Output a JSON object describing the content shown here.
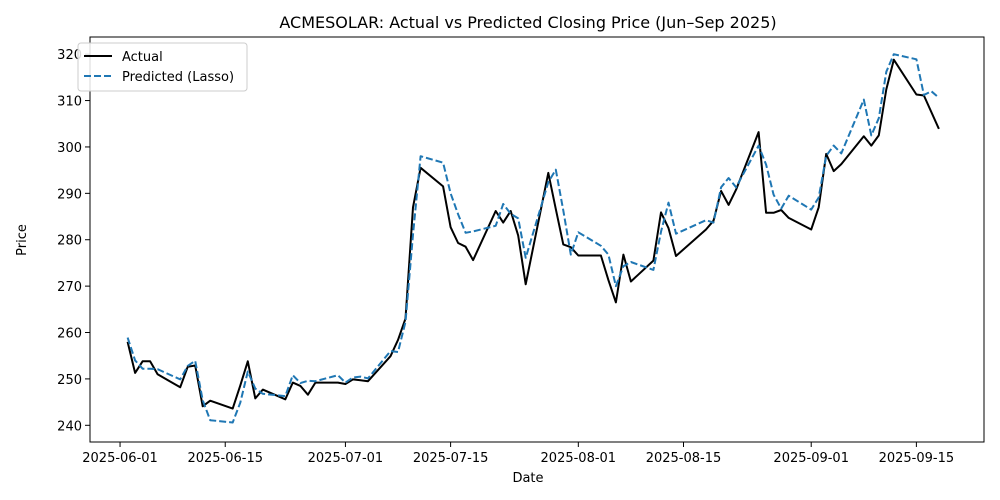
{
  "chart_data": {
    "type": "line",
    "title": "ACMESOLAR: Actual vs Predicted Closing Price (Jun–Sep 2025)",
    "xlabel": "Date",
    "ylabel": "Price",
    "x_range": [
      "2025-05-28",
      "2025-09-24"
    ],
    "ylim": [
      236.4,
      323.7
    ],
    "x_ticks": [
      "2025-06-01",
      "2025-06-15",
      "2025-07-01",
      "2025-07-15",
      "2025-08-01",
      "2025-08-15",
      "2025-09-01",
      "2025-09-15"
    ],
    "y_ticks": [
      240,
      250,
      260,
      270,
      280,
      290,
      300,
      310,
      320
    ],
    "grid": false,
    "legend": "top-left",
    "series": [
      {
        "name": "Actual",
        "color": "#000000",
        "dash": "solid",
        "points": [
          [
            "2025-06-02",
            258.0
          ],
          [
            "2025-06-03",
            251.3
          ],
          [
            "2025-06-04",
            253.8
          ],
          [
            "2025-06-05",
            253.8
          ],
          [
            "2025-06-06",
            251.0
          ],
          [
            "2025-06-09",
            248.2
          ],
          [
            "2025-06-10",
            252.6
          ],
          [
            "2025-06-11",
            252.9
          ],
          [
            "2025-06-12",
            244.1
          ],
          [
            "2025-06-13",
            245.3
          ],
          [
            "2025-06-16",
            243.6
          ],
          [
            "2025-06-17",
            248.6
          ],
          [
            "2025-06-18",
            253.8
          ],
          [
            "2025-06-19",
            245.8
          ],
          [
            "2025-06-20",
            247.7
          ],
          [
            "2025-06-23",
            245.6
          ],
          [
            "2025-06-24",
            249.2
          ],
          [
            "2025-06-25",
            248.5
          ],
          [
            "2025-06-26",
            246.6
          ],
          [
            "2025-06-27",
            249.2
          ],
          [
            "2025-06-30",
            249.2
          ],
          [
            "2025-07-01",
            248.9
          ],
          [
            "2025-07-02",
            249.9
          ],
          [
            "2025-07-03",
            249.7
          ],
          [
            "2025-07-04",
            249.5
          ],
          [
            "2025-07-07",
            254.9
          ],
          [
            "2025-07-08",
            258.4
          ],
          [
            "2025-07-09",
            263.0
          ],
          [
            "2025-07-10",
            287.0
          ],
          [
            "2025-07-11",
            295.5
          ],
          [
            "2025-07-14",
            291.5
          ],
          [
            "2025-07-15",
            282.7
          ],
          [
            "2025-07-16",
            279.3
          ],
          [
            "2025-07-17",
            278.5
          ],
          [
            "2025-07-18",
            275.6
          ],
          [
            "2025-07-21",
            286.2
          ],
          [
            "2025-07-22",
            283.7
          ],
          [
            "2025-07-23",
            286.2
          ],
          [
            "2025-07-24",
            280.9
          ],
          [
            "2025-07-25",
            270.4
          ],
          [
            "2025-07-28",
            294.4
          ],
          [
            "2025-07-29",
            286.6
          ],
          [
            "2025-07-30",
            279.0
          ],
          [
            "2025-07-31",
            278.4
          ],
          [
            "2025-08-01",
            276.6
          ],
          [
            "2025-08-04",
            276.6
          ],
          [
            "2025-08-05",
            271.3
          ],
          [
            "2025-08-06",
            266.5
          ],
          [
            "2025-08-07",
            276.8
          ],
          [
            "2025-08-08",
            271.0
          ],
          [
            "2025-08-11",
            275.5
          ],
          [
            "2025-08-12",
            285.9
          ],
          [
            "2025-08-13",
            282.5
          ],
          [
            "2025-08-14",
            276.5
          ],
          [
            "2025-08-18",
            282.2
          ],
          [
            "2025-08-19",
            284.1
          ],
          [
            "2025-08-20",
            290.5
          ],
          [
            "2025-08-21",
            287.5
          ],
          [
            "2025-08-22",
            290.8
          ],
          [
            "2025-08-25",
            303.2
          ],
          [
            "2025-08-26",
            285.8
          ],
          [
            "2025-08-27",
            285.8
          ],
          [
            "2025-08-28",
            286.4
          ],
          [
            "2025-08-29",
            284.7
          ],
          [
            "2025-09-01",
            282.2
          ],
          [
            "2025-09-02",
            287.0
          ],
          [
            "2025-09-03",
            298.5
          ],
          [
            "2025-09-04",
            294.8
          ],
          [
            "2025-09-05",
            296.3
          ],
          [
            "2025-09-08",
            302.3
          ],
          [
            "2025-09-09",
            300.3
          ],
          [
            "2025-09-10",
            302.5
          ],
          [
            "2025-09-11",
            312.4
          ],
          [
            "2025-09-12",
            318.8
          ],
          [
            "2025-09-15",
            311.3
          ],
          [
            "2025-09-16",
            311.1
          ],
          [
            "2025-09-18",
            303.9
          ]
        ]
      },
      {
        "name": "Predicted (Lasso)",
        "color": "#1f77b4",
        "dash": "dashed",
        "points": [
          [
            "2025-06-02",
            258.9
          ],
          [
            "2025-06-03",
            254.0
          ],
          [
            "2025-06-04",
            252.2
          ],
          [
            "2025-06-05",
            252.2
          ],
          [
            "2025-06-06",
            252.1
          ],
          [
            "2025-06-09",
            249.9
          ],
          [
            "2025-06-10",
            252.8
          ],
          [
            "2025-06-11",
            253.9
          ],
          [
            "2025-06-12",
            245.4
          ],
          [
            "2025-06-13",
            241.1
          ],
          [
            "2025-06-16",
            240.6
          ],
          [
            "2025-06-17",
            244.9
          ],
          [
            "2025-06-18",
            251.6
          ],
          [
            "2025-06-19",
            247.9
          ],
          [
            "2025-06-20",
            246.8
          ],
          [
            "2025-06-23",
            246.3
          ],
          [
            "2025-06-24",
            250.8
          ],
          [
            "2025-06-25",
            249.1
          ],
          [
            "2025-06-26",
            249.6
          ],
          [
            "2025-06-27",
            249.5
          ],
          [
            "2025-06-30",
            250.8
          ],
          [
            "2025-07-01",
            249.2
          ],
          [
            "2025-07-02",
            250.3
          ],
          [
            "2025-07-03",
            250.5
          ],
          [
            "2025-07-04",
            250.1
          ],
          [
            "2025-07-07",
            256.0
          ],
          [
            "2025-07-08",
            255.8
          ],
          [
            "2025-07-09",
            262.3
          ],
          [
            "2025-07-10",
            281.1
          ],
          [
            "2025-07-11",
            298.0
          ],
          [
            "2025-07-14",
            296.6
          ],
          [
            "2025-07-15",
            290.0
          ],
          [
            "2025-07-16",
            285.5
          ],
          [
            "2025-07-17",
            281.5
          ],
          [
            "2025-07-18",
            281.8
          ],
          [
            "2025-07-21",
            283.0
          ],
          [
            "2025-07-22",
            287.7
          ],
          [
            "2025-07-23",
            285.6
          ],
          [
            "2025-07-24",
            284.6
          ],
          [
            "2025-07-25",
            276.1
          ],
          [
            "2025-07-28",
            292.4
          ],
          [
            "2025-07-29",
            295.1
          ],
          [
            "2025-07-30",
            286.3
          ],
          [
            "2025-07-31",
            276.8
          ],
          [
            "2025-08-01",
            281.6
          ],
          [
            "2025-08-04",
            278.7
          ],
          [
            "2025-08-05",
            276.8
          ],
          [
            "2025-08-06",
            270.0
          ],
          [
            "2025-08-07",
            274.3
          ],
          [
            "2025-08-08",
            275.2
          ],
          [
            "2025-08-11",
            273.5
          ],
          [
            "2025-08-12",
            281.7
          ],
          [
            "2025-08-13",
            288.0
          ],
          [
            "2025-08-14",
            281.3
          ],
          [
            "2025-08-18",
            284.2
          ],
          [
            "2025-08-19",
            283.7
          ],
          [
            "2025-08-20",
            291.3
          ],
          [
            "2025-08-21",
            293.3
          ],
          [
            "2025-08-22",
            291.3
          ],
          [
            "2025-08-25",
            300.3
          ],
          [
            "2025-08-26",
            296.2
          ],
          [
            "2025-08-27",
            289.7
          ],
          [
            "2025-08-28",
            286.7
          ],
          [
            "2025-08-29",
            289.5
          ],
          [
            "2025-09-01",
            286.5
          ],
          [
            "2025-09-02",
            289.1
          ],
          [
            "2025-09-03",
            298.1
          ],
          [
            "2025-09-04",
            300.3
          ],
          [
            "2025-09-05",
            298.6
          ],
          [
            "2025-09-08",
            310.2
          ],
          [
            "2025-09-09",
            302.5
          ],
          [
            "2025-09-10",
            306.2
          ],
          [
            "2025-09-11",
            316.2
          ],
          [
            "2025-09-12",
            320.0
          ],
          [
            "2025-09-15",
            318.9
          ],
          [
            "2025-09-16",
            311.2
          ],
          [
            "2025-09-17",
            312.0
          ],
          [
            "2025-09-18",
            310.6
          ]
        ]
      }
    ]
  }
}
